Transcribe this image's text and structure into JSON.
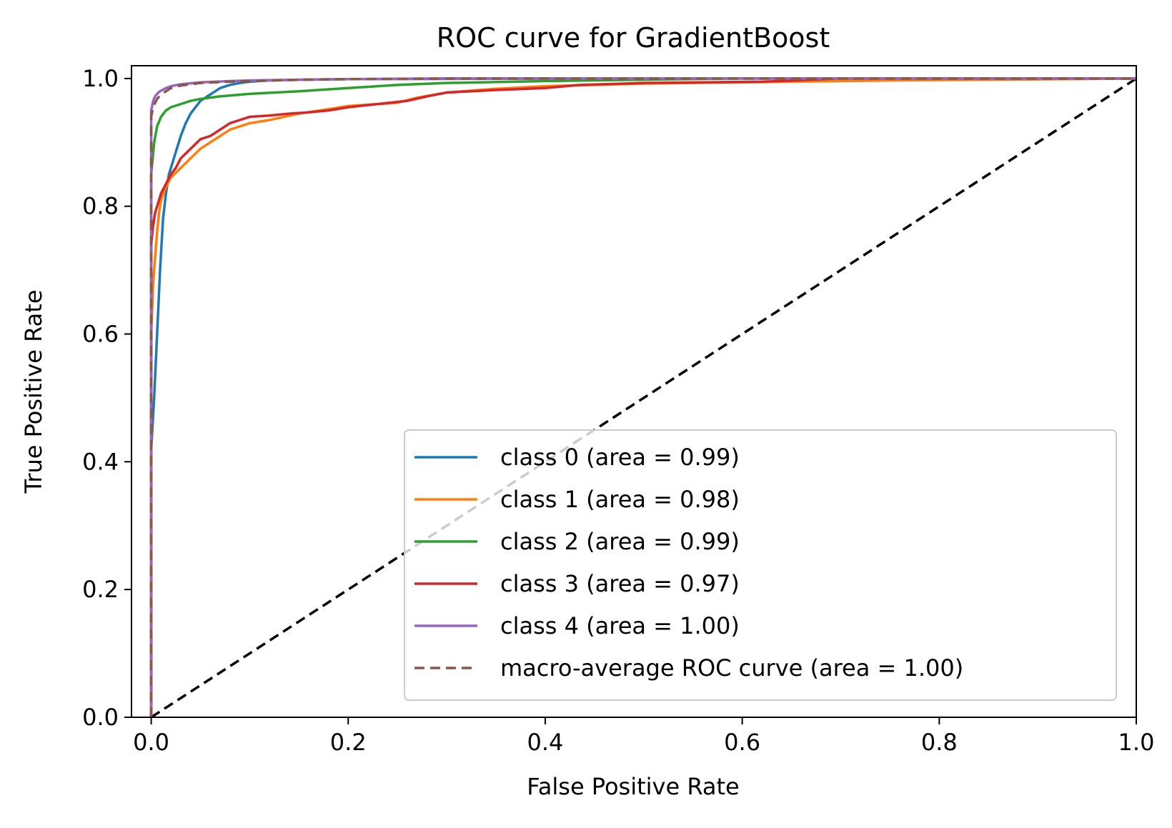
{
  "chart_data": {
    "type": "line",
    "title": "ROC curve for GradientBoost",
    "xlabel": "False Positive Rate",
    "ylabel": "True Positive Rate",
    "xlim": [
      -0.02,
      1.0
    ],
    "ylim": [
      0.0,
      1.02
    ],
    "xticks": [
      0.0,
      0.2,
      0.4,
      0.6,
      0.8,
      1.0
    ],
    "xtick_labels": [
      "0.0",
      "0.2",
      "0.4",
      "0.6",
      "0.8",
      "1.0"
    ],
    "yticks": [
      0.0,
      0.2,
      0.4,
      0.6,
      0.8,
      1.0
    ],
    "ytick_labels": [
      "0.0",
      "0.2",
      "0.4",
      "0.6",
      "0.8",
      "1.0"
    ],
    "grid": false,
    "legend_position": "lower-right",
    "series": [
      {
        "name": "class 0 (area = 0.99)",
        "color": "#1f77b4",
        "style": "solid",
        "x": [
          0.0,
          0.0,
          0.003,
          0.006,
          0.009,
          0.012,
          0.015,
          0.018,
          0.022,
          0.026,
          0.03,
          0.035,
          0.04,
          0.045,
          0.05,
          0.06,
          0.07,
          0.08,
          0.09,
          0.1,
          0.12,
          0.15,
          0.2,
          0.3,
          0.5,
          1.0
        ],
        "y": [
          0.0,
          0.42,
          0.5,
          0.6,
          0.7,
          0.78,
          0.82,
          0.85,
          0.87,
          0.89,
          0.91,
          0.93,
          0.945,
          0.955,
          0.965,
          0.975,
          0.985,
          0.99,
          0.993,
          0.995,
          0.997,
          0.998,
          0.999,
          1.0,
          1.0,
          1.0
        ]
      },
      {
        "name": "class 1 (area = 0.98)",
        "color": "#ff7f0e",
        "style": "solid",
        "x": [
          0.0,
          0.0,
          0.002,
          0.004,
          0.006,
          0.008,
          0.01,
          0.015,
          0.02,
          0.03,
          0.04,
          0.05,
          0.06,
          0.07,
          0.08,
          0.1,
          0.12,
          0.15,
          0.18,
          0.2,
          0.25,
          0.27,
          0.3,
          0.35,
          0.4,
          0.5,
          0.65,
          0.75,
          0.85,
          1.0
        ],
        "y": [
          0.0,
          0.6,
          0.68,
          0.72,
          0.76,
          0.79,
          0.81,
          0.83,
          0.845,
          0.86,
          0.875,
          0.89,
          0.9,
          0.91,
          0.92,
          0.93,
          0.935,
          0.945,
          0.952,
          0.957,
          0.962,
          0.97,
          0.978,
          0.984,
          0.988,
          0.992,
          0.995,
          0.997,
          0.998,
          1.0
        ]
      },
      {
        "name": "class 2 (area = 0.99)",
        "color": "#2ca02c",
        "style": "solid",
        "x": [
          0.0,
          0.0,
          0.003,
          0.006,
          0.01,
          0.015,
          0.02,
          0.03,
          0.04,
          0.05,
          0.07,
          0.1,
          0.15,
          0.2,
          0.25,
          0.3,
          0.4,
          0.5,
          0.6,
          1.0
        ],
        "y": [
          0.0,
          0.85,
          0.9,
          0.925,
          0.94,
          0.95,
          0.955,
          0.96,
          0.965,
          0.968,
          0.972,
          0.976,
          0.98,
          0.985,
          0.99,
          0.993,
          0.996,
          0.998,
          1.0,
          1.0
        ]
      },
      {
        "name": "class 3 (area = 0.97)",
        "color": "#d62728",
        "style": "solid",
        "x": [
          0.0,
          0.0,
          0.002,
          0.004,
          0.006,
          0.008,
          0.01,
          0.015,
          0.02,
          0.025,
          0.03,
          0.04,
          0.05,
          0.06,
          0.07,
          0.08,
          0.09,
          0.1,
          0.12,
          0.14,
          0.16,
          0.18,
          0.2,
          0.23,
          0.26,
          0.28,
          0.3,
          0.35,
          0.4,
          0.435,
          0.5,
          0.62,
          0.7,
          1.0
        ],
        "y": [
          0.0,
          0.74,
          0.77,
          0.79,
          0.8,
          0.81,
          0.82,
          0.835,
          0.85,
          0.86,
          0.875,
          0.89,
          0.905,
          0.91,
          0.92,
          0.93,
          0.935,
          0.94,
          0.942,
          0.945,
          0.947,
          0.95,
          0.955,
          0.96,
          0.965,
          0.972,
          0.978,
          0.982,
          0.985,
          0.99,
          0.993,
          0.995,
          1.0,
          1.0
        ]
      },
      {
        "name": "class 4 (area = 1.00)",
        "color": "#9467bd",
        "style": "solid",
        "x": [
          0.0,
          0.0,
          0.002,
          0.004,
          0.006,
          0.008,
          0.01,
          0.015,
          0.02,
          0.03,
          0.05,
          0.08,
          0.1,
          0.2,
          0.5,
          1.0
        ],
        "y": [
          0.0,
          0.95,
          0.965,
          0.972,
          0.976,
          0.979,
          0.981,
          0.985,
          0.988,
          0.991,
          0.994,
          0.996,
          0.997,
          0.999,
          1.0,
          1.0
        ]
      },
      {
        "name": "macro-average ROC curve (area = 1.00)",
        "color": "#8c564b",
        "style": "dashed",
        "x": [
          0.0,
          0.0,
          0.002,
          0.004,
          0.006,
          0.01,
          0.015,
          0.02,
          0.03,
          0.05,
          0.08,
          0.1,
          0.15,
          0.2,
          0.3,
          0.5,
          1.0
        ],
        "y": [
          0.0,
          0.94,
          0.955,
          0.962,
          0.968,
          0.975,
          0.98,
          0.985,
          0.989,
          0.993,
          0.995,
          0.996,
          0.998,
          0.999,
          1.0,
          1.0,
          1.0
        ]
      }
    ],
    "reference_line": {
      "x": [
        0.0,
        1.0
      ],
      "y": [
        0.0,
        1.0
      ],
      "color": "#000000",
      "style": "dashed"
    }
  }
}
